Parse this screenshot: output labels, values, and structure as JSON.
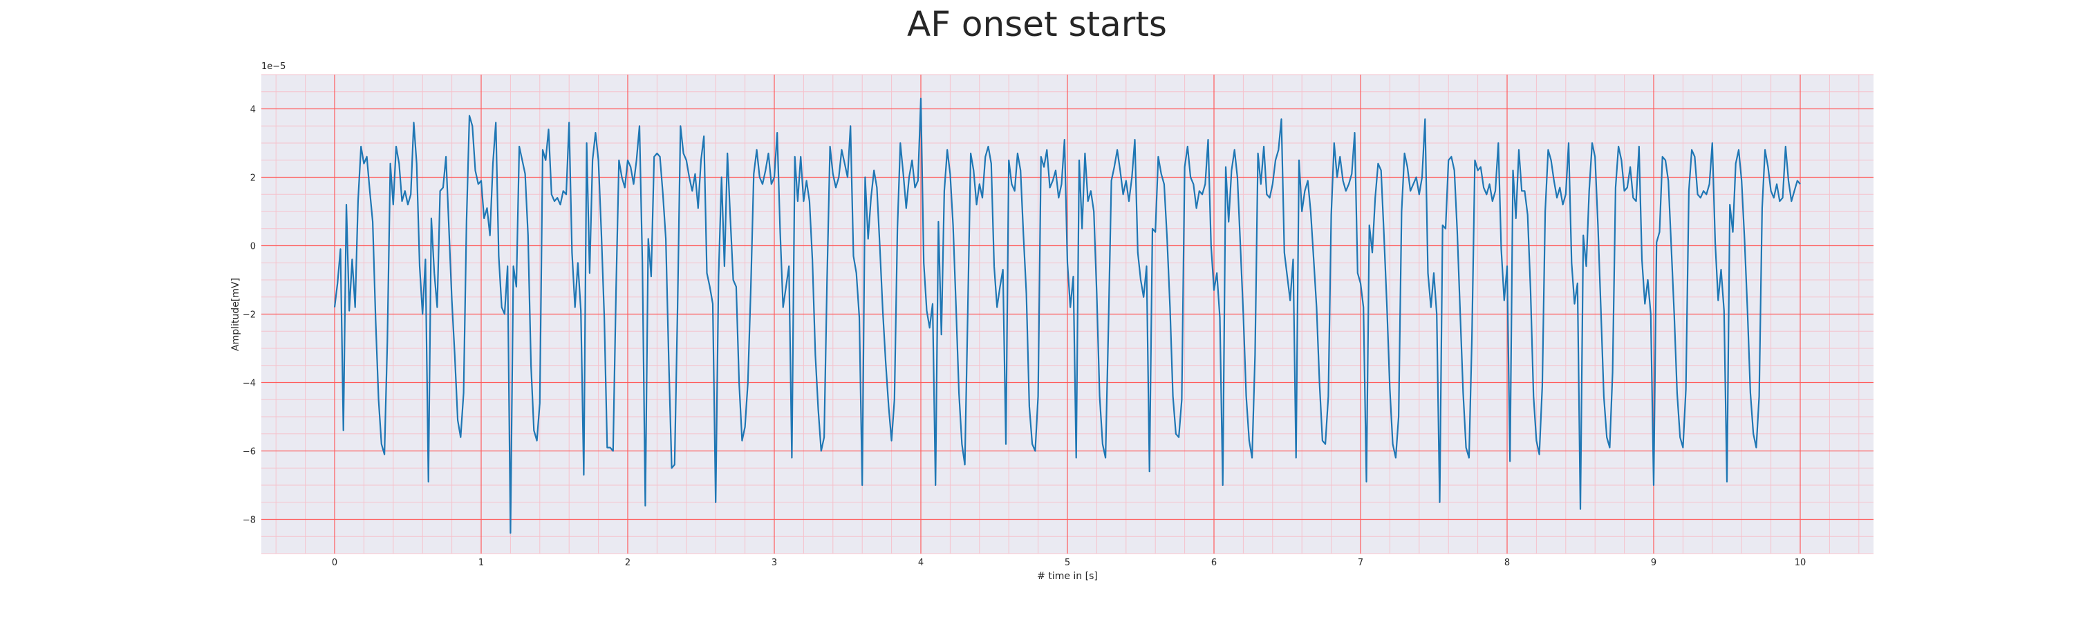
{
  "chart_data": {
    "type": "line",
    "title": "AF onset starts",
    "xlabel": "# time in [s]",
    "ylabel": "Amplitude[mV]",
    "y_offset_label": "1e−5",
    "xlim": [
      -0.5,
      10.5
    ],
    "ylim": [
      -9.0,
      5.0
    ],
    "x_ticks": [
      0,
      1,
      2,
      3,
      4,
      5,
      6,
      7,
      8,
      9,
      10
    ],
    "x_tick_labels": [
      "0",
      "1",
      "2",
      "3",
      "4",
      "5",
      "6",
      "7",
      "8",
      "9",
      "10"
    ],
    "y_ticks": [
      -8,
      -6,
      -4,
      -2,
      0,
      2,
      4
    ],
    "y_tick_labels": [
      "−8",
      "−6",
      "−4",
      "−2",
      "0",
      "2",
      "4"
    ],
    "grid": "major and minor",
    "colors": {
      "background": "#eaeaf2",
      "major_grid": "#ff5c5c",
      "minor_grid": "#f5c2cc",
      "line": "#1f77b4"
    },
    "series": [
      {
        "x": [
          0.0,
          0.02,
          0.04,
          0.06,
          0.08,
          0.1,
          0.12,
          0.14,
          0.16,
          0.18,
          0.2,
          0.22,
          0.24,
          0.26,
          0.28,
          0.3,
          0.32,
          0.34,
          0.36,
          0.38,
          0.4,
          0.42,
          0.44,
          0.46,
          0.48,
          0.5,
          0.52,
          0.54,
          0.56,
          0.58,
          0.6,
          0.62,
          0.64,
          0.66,
          0.68,
          0.7,
          0.72,
          0.74,
          0.76,
          0.78,
          0.8,
          0.82,
          0.84,
          0.86,
          0.88,
          0.9,
          0.92,
          0.94,
          0.96,
          0.98,
          1.0,
          1.02,
          1.04,
          1.06,
          1.08,
          1.1,
          1.12,
          1.14,
          1.16,
          1.18,
          1.2,
          1.22,
          1.24,
          1.26,
          1.28,
          1.3,
          1.32,
          1.34,
          1.36,
          1.38,
          1.4,
          1.42,
          1.44,
          1.46,
          1.48,
          1.5,
          1.52,
          1.54,
          1.56,
          1.58,
          1.6,
          1.62,
          1.64,
          1.66,
          1.68,
          1.7,
          1.72,
          1.74,
          1.76,
          1.78,
          1.8,
          1.82,
          1.84,
          1.86,
          1.88,
          1.9,
          1.92,
          1.94,
          1.96,
          1.98,
          2.0,
          2.02,
          2.04,
          2.06,
          2.08,
          2.1,
          2.12,
          2.14,
          2.16,
          2.18,
          2.2,
          2.22,
          2.24,
          2.26,
          2.28,
          2.3,
          2.32,
          2.34,
          2.36,
          2.38,
          2.4,
          2.42,
          2.44,
          2.46,
          2.48,
          2.5,
          2.52,
          2.54,
          2.56,
          2.58,
          2.6,
          2.62,
          2.64,
          2.66,
          2.68,
          2.7,
          2.72,
          2.74,
          2.76,
          2.78,
          2.8,
          2.82,
          2.84,
          2.86,
          2.88,
          2.9,
          2.92,
          2.94,
          2.96,
          2.98,
          3.0,
          3.02,
          3.04,
          3.06,
          3.08,
          3.1,
          3.12,
          3.14,
          3.16,
          3.18,
          3.2,
          3.22,
          3.24,
          3.26,
          3.28,
          3.3,
          3.32,
          3.34,
          3.36,
          3.38,
          3.4,
          3.42,
          3.44,
          3.46,
          3.48,
          3.5,
          3.52,
          3.54,
          3.56,
          3.58,
          3.6,
          3.62,
          3.64,
          3.66,
          3.68,
          3.7,
          3.72,
          3.74,
          3.76,
          3.78,
          3.8,
          3.82,
          3.84,
          3.86,
          3.88,
          3.9,
          3.92,
          3.94,
          3.96,
          3.98,
          4.0,
          4.02,
          4.04,
          4.06,
          4.08,
          4.1,
          4.12,
          4.14,
          4.16,
          4.18,
          4.2,
          4.22,
          4.24,
          4.26,
          4.28,
          4.3,
          4.32,
          4.34,
          4.36,
          4.38,
          4.4,
          4.42,
          4.44,
          4.46,
          4.48,
          4.5,
          4.52,
          4.54,
          4.56,
          4.58,
          4.6,
          4.62,
          4.64,
          4.66,
          4.68,
          4.7,
          4.72,
          4.74,
          4.76,
          4.78,
          4.8,
          4.82,
          4.84,
          4.86,
          4.88,
          4.9,
          4.92,
          4.94,
          4.96,
          4.98,
          5.0,
          5.02,
          5.04,
          5.06,
          5.08,
          5.1,
          5.12,
          5.14,
          5.16,
          5.18,
          5.2,
          5.22,
          5.24,
          5.26,
          5.28,
          5.3,
          5.32,
          5.34,
          5.36,
          5.38,
          5.4,
          5.42,
          5.44,
          5.46,
          5.48,
          5.5,
          5.52,
          5.54,
          5.56,
          5.58,
          5.6,
          5.62,
          5.64,
          5.66,
          5.68,
          5.7,
          5.72,
          5.74,
          5.76,
          5.78,
          5.8,
          5.82,
          5.84,
          5.86,
          5.88,
          5.9,
          5.92,
          5.94,
          5.96,
          5.98,
          6.0,
          6.02,
          6.04,
          6.06,
          6.08,
          6.1,
          6.12,
          6.14,
          6.16,
          6.18,
          6.2,
          6.22,
          6.24,
          6.26,
          6.28,
          6.3,
          6.32,
          6.34,
          6.36,
          6.38,
          6.4,
          6.42,
          6.44,
          6.46,
          6.48,
          6.5,
          6.52,
          6.54,
          6.56,
          6.58,
          6.6,
          6.62,
          6.64,
          6.66,
          6.68,
          6.7,
          6.72,
          6.74,
          6.76,
          6.78,
          6.8,
          6.82,
          6.84,
          6.86,
          6.88,
          6.9,
          6.92,
          6.94,
          6.96,
          6.98,
          7.0,
          7.02,
          7.04,
          7.06,
          7.08,
          7.1,
          7.12,
          7.14,
          7.16,
          7.18,
          7.2,
          7.22,
          7.24,
          7.26,
          7.28,
          7.3,
          7.32,
          7.34,
          7.36,
          7.38,
          7.4,
          7.42,
          7.44,
          7.46,
          7.48,
          7.5,
          7.52,
          7.54,
          7.56,
          7.58,
          7.6,
          7.62,
          7.64,
          7.66,
          7.68,
          7.7,
          7.72,
          7.74,
          7.76,
          7.78,
          7.8,
          7.82,
          7.84,
          7.86,
          7.88,
          7.9,
          7.92,
          7.94,
          7.96,
          7.98,
          8.0,
          8.02,
          8.04,
          8.06,
          8.08,
          8.1,
          8.12,
          8.14,
          8.16,
          8.18,
          8.2,
          8.22,
          8.24,
          8.26,
          8.28,
          8.3,
          8.32,
          8.34,
          8.36,
          8.38,
          8.4,
          8.42,
          8.44,
          8.46,
          8.48,
          8.5,
          8.52,
          8.54,
          8.56,
          8.58,
          8.6,
          8.62,
          8.64,
          8.66,
          8.68,
          8.7,
          8.72,
          8.74,
          8.76,
          8.78,
          8.8,
          8.82,
          8.84,
          8.86,
          8.88,
          8.9,
          8.92,
          8.94,
          8.96,
          8.98,
          9.0,
          9.02,
          9.04,
          9.06,
          9.08,
          9.1,
          9.12,
          9.14,
          9.16,
          9.18,
          9.2,
          9.22,
          9.24,
          9.26,
          9.28,
          9.3,
          9.32,
          9.34,
          9.36,
          9.38,
          9.4,
          9.42,
          9.44,
          9.46,
          9.48,
          9.5,
          9.52,
          9.54,
          9.56,
          9.58,
          9.6,
          9.62,
          9.64,
          9.66,
          9.68,
          9.7,
          9.72,
          9.74,
          9.76,
          9.78,
          9.8,
          9.82,
          9.84,
          9.86,
          9.88,
          9.9,
          9.92,
          9.94,
          9.96,
          9.98,
          10.0
        ],
        "y": [
          -1.8,
          -1.1,
          -0.1,
          -5.4,
          1.2,
          -1.9,
          -0.4,
          -1.8,
          1.3,
          2.9,
          2.4,
          2.6,
          1.6,
          0.7,
          -2.2,
          -4.5,
          -5.8,
          -6.1,
          -2.8,
          2.4,
          1.2,
          2.9,
          2.4,
          1.3,
          1.6,
          1.2,
          1.5,
          3.6,
          2.4,
          -0.6,
          -2.0,
          -0.4,
          -6.9,
          0.8,
          -0.8,
          -1.8,
          1.6,
          1.7,
          2.6,
          0.5,
          -1.6,
          -3.2,
          -5.1,
          -5.6,
          -4.3,
          0.7,
          3.8,
          3.5,
          2.2,
          1.8,
          1.9,
          0.8,
          1.1,
          0.3,
          2.4,
          3.6,
          -0.3,
          -1.8,
          -2.0,
          -0.6,
          -8.4,
          -0.6,
          -1.2,
          2.9,
          2.5,
          2.1,
          0.3,
          -3.5,
          -5.4,
          -5.7,
          -4.6,
          2.8,
          2.5,
          3.4,
          1.5,
          1.3,
          1.4,
          1.2,
          1.6,
          1.5,
          3.6,
          -0.2,
          -1.8,
          -0.5,
          -1.9,
          -6.7,
          3.0,
          -0.8,
          2.5,
          3.3,
          2.5,
          0.4,
          -2.1,
          -5.9,
          -5.9,
          -6.0,
          -1.4,
          2.5,
          2.0,
          1.7,
          2.5,
          2.3,
          1.8,
          2.5,
          3.5,
          -0.5,
          -7.6,
          0.2,
          -0.9,
          2.6,
          2.7,
          2.6,
          1.5,
          0.2,
          -3.4,
          -6.5,
          -6.4,
          -1.8,
          3.5,
          2.7,
          2.5,
          2.0,
          1.6,
          2.1,
          1.1,
          2.5,
          3.2,
          -0.8,
          -1.2,
          -1.7,
          -7.5,
          -0.9,
          2.0,
          -0.6,
          2.7,
          0.8,
          -1.0,
          -1.2,
          -4.0,
          -5.7,
          -5.3,
          -4.0,
          -1.2,
          2.1,
          2.8,
          2.0,
          1.8,
          2.2,
          2.7,
          1.8,
          2.0,
          3.3,
          0.4,
          -1.8,
          -1.2,
          -0.6,
          -6.2,
          2.6,
          1.3,
          2.6,
          1.3,
          1.9,
          1.3,
          -0.4,
          -3.2,
          -4.8,
          -6.0,
          -5.6,
          -1.0,
          2.9,
          2.1,
          1.7,
          2.0,
          2.8,
          2.4,
          2.0,
          3.5,
          -0.3,
          -0.8,
          -2.1,
          -7.0,
          2.0,
          0.2,
          1.4,
          2.2,
          1.7,
          0.0,
          -1.9,
          -3.4,
          -4.7,
          -5.7,
          -4.5,
          0.5,
          3.0,
          2.1,
          1.1,
          2.0,
          2.5,
          1.7,
          1.9,
          4.3,
          -0.5,
          -1.9,
          -2.4,
          -1.7,
          -7.0,
          0.7,
          -2.6,
          1.6,
          2.8,
          2.1,
          0.6,
          -1.8,
          -4.3,
          -5.8,
          -6.4,
          -2.0,
          2.7,
          2.2,
          1.2,
          1.8,
          1.4,
          2.6,
          2.9,
          2.4,
          -0.6,
          -1.8,
          -1.2,
          -0.7,
          -5.8,
          2.5,
          1.8,
          1.6,
          2.7,
          2.2,
          0.3,
          -1.4,
          -4.7,
          -5.8,
          -6.0,
          -4.4,
          2.6,
          2.3,
          2.8,
          1.7,
          1.9,
          2.2,
          1.4,
          1.8,
          3.1,
          -0.5,
          -1.8,
          -0.9,
          -6.2,
          2.5,
          0.5,
          2.7,
          1.3,
          1.6,
          1.0,
          -1.4,
          -4.4,
          -5.8,
          -6.2,
          -2.3,
          1.9,
          2.3,
          2.8,
          2.2,
          1.5,
          1.9,
          1.3,
          2.0,
          3.1,
          -0.2,
          -1.0,
          -1.5,
          -0.6,
          -6.6,
          0.5,
          0.4,
          2.6,
          2.1,
          1.8,
          0.2,
          -1.8,
          -4.4,
          -5.5,
          -5.6,
          -4.5,
          2.3,
          2.9,
          2.0,
          1.8,
          1.1,
          1.6,
          1.5,
          1.8,
          3.1,
          0.0,
          -1.3,
          -0.8,
          -2.1,
          -7.0,
          2.3,
          0.7,
          2.2,
          2.8,
          2.0,
          0.0,
          -2.0,
          -4.4,
          -5.7,
          -6.2,
          -3.2,
          2.7,
          1.8,
          2.9,
          1.5,
          1.4,
          1.8,
          2.5,
          2.8,
          3.7,
          -0.2,
          -0.9,
          -1.6,
          -0.4,
          -6.2,
          2.5,
          1.0,
          1.6,
          1.9,
          1.0,
          -0.4,
          -1.8,
          -4.0,
          -5.7,
          -5.8,
          -4.4,
          0.9,
          3.0,
          2.0,
          2.6,
          1.9,
          1.6,
          1.8,
          2.1,
          3.3,
          -0.8,
          -1.1,
          -1.8,
          -6.9,
          0.6,
          -0.2,
          1.4,
          2.4,
          2.2,
          0.3,
          -1.8,
          -4.2,
          -5.8,
          -6.2,
          -5.0,
          1.0,
          2.7,
          2.3,
          1.6,
          1.8,
          2.0,
          1.5,
          2.0,
          3.7,
          -0.8,
          -1.8,
          -0.8,
          -2.0,
          -7.5,
          0.6,
          0.5,
          2.5,
          2.6,
          2.2,
          0.4,
          -2.0,
          -4.3,
          -5.9,
          -6.2,
          -2.7,
          2.5,
          2.2,
          2.3,
          1.7,
          1.5,
          1.8,
          1.3,
          1.6,
          3.0,
          -0.1,
          -1.6,
          -0.6,
          -6.3,
          2.2,
          0.8,
          2.8,
          1.6,
          1.6,
          0.9,
          -1.3,
          -4.4,
          -5.7,
          -6.1,
          -4.1,
          1.0,
          2.8,
          2.5,
          1.9,
          1.4,
          1.7,
          1.2,
          1.5,
          3.0,
          -0.5,
          -1.7,
          -1.1,
          -7.7,
          0.3,
          -0.6,
          1.6,
          3.0,
          2.6,
          0.6,
          -1.9,
          -4.4,
          -5.6,
          -5.9,
          -3.7,
          1.7,
          2.9,
          2.5,
          1.6,
          1.7,
          2.3,
          1.4,
          1.3,
          2.9,
          -0.4,
          -1.7,
          -1.0,
          -2.0,
          -7.0,
          0.1,
          0.4,
          2.6,
          2.5,
          1.9,
          0.0,
          -2.0,
          -4.3,
          -5.6,
          -5.9,
          -4.2,
          1.6,
          2.8,
          2.6,
          1.5,
          1.4,
          1.6,
          1.5,
          1.8,
          3.0,
          0.1,
          -1.6,
          -0.7,
          -1.9,
          -6.9,
          1.2,
          0.4,
          2.4,
          2.8,
          1.9,
          0.2,
          -1.9,
          -4.3,
          -5.5,
          -5.9,
          -4.4,
          1.1,
          2.8,
          2.3,
          1.6,
          1.4,
          1.8,
          1.3,
          1.4,
          2.9,
          1.9,
          1.3,
          1.6,
          1.9,
          1.8
        ]
      }
    ]
  }
}
